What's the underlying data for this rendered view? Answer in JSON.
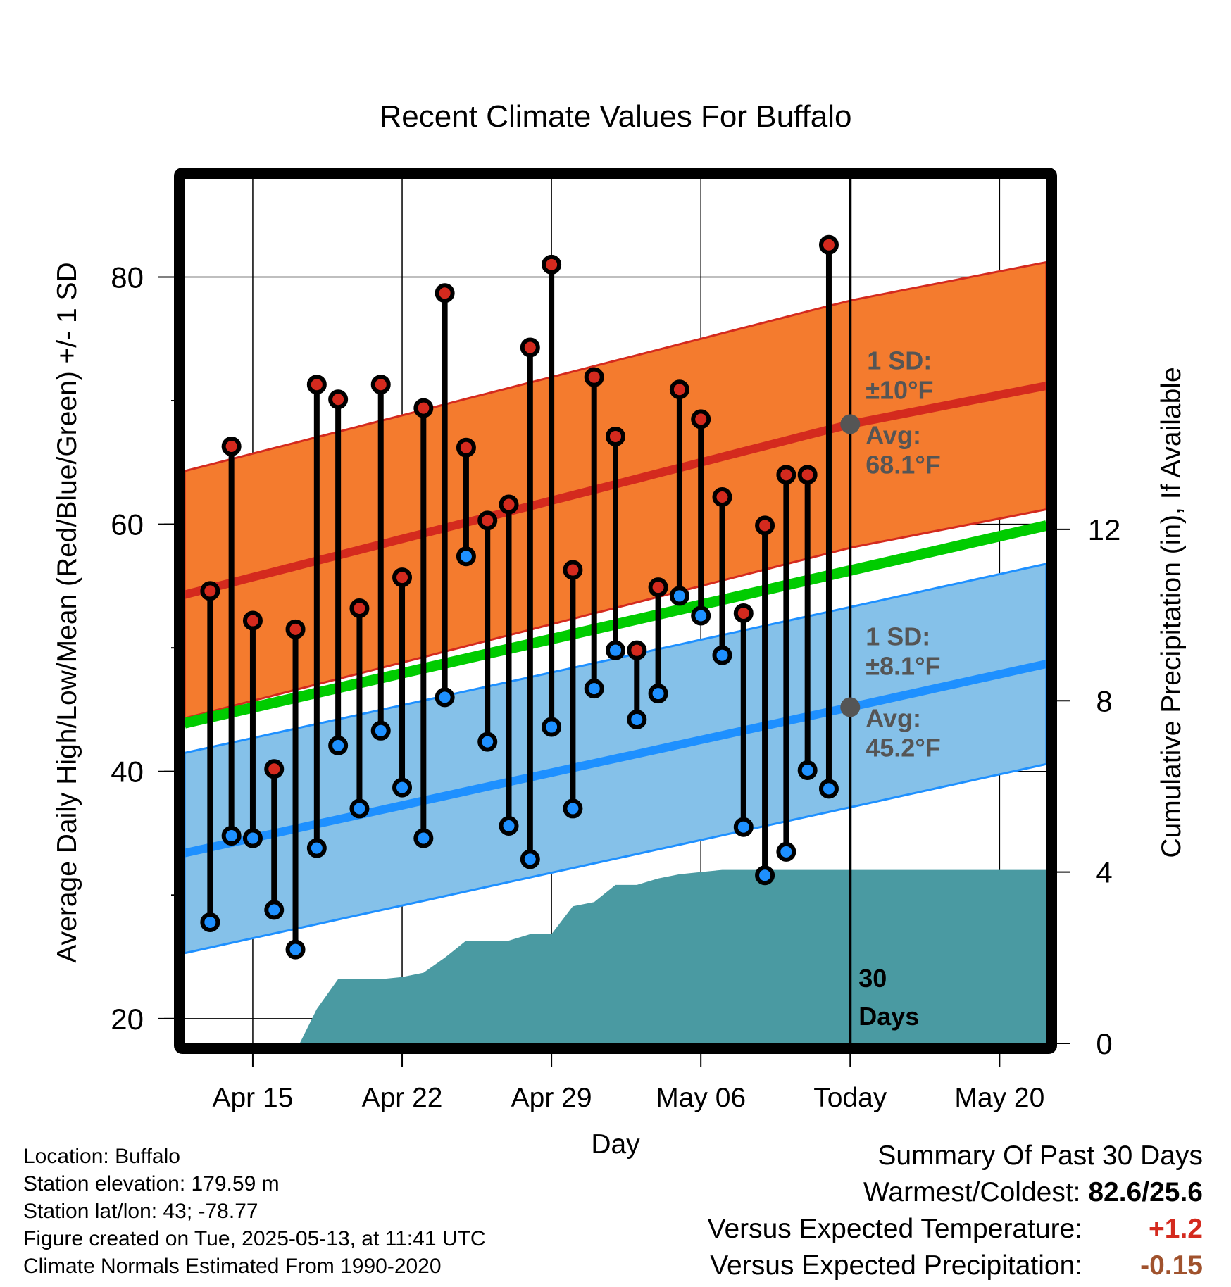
{
  "colors": {
    "high_band": "#f47b2e",
    "high_band_edge": "#d42a1e",
    "high_avg": "#d42a1e",
    "low_band": "#85c1e9",
    "low_band_edge": "#1e90ff",
    "low_avg": "#1e90ff",
    "mean_line": "#00cc00",
    "precip": "#4a9aa2",
    "high_marker": "#d42a1e",
    "low_marker": "#1e90ff",
    "annotation": "#555555",
    "warm_value": "#d42a1e",
    "precip_value": "#a0522d"
  },
  "chart_data": {
    "type": "line",
    "title": "Recent Climate Values For Buffalo",
    "xlabel": "Day",
    "ylabel": "Average Daily High/Low/Mean (Red/Blue/Green) +/- 1 SD",
    "y2label": "Cumulative Precipitation (in), If Available",
    "x_tick_labels": [
      "Apr 15",
      "Apr 22",
      "Apr 29",
      "May 06",
      "Today",
      "May 20"
    ],
    "x_tick_days": [
      15,
      22,
      29,
      36,
      43,
      50
    ],
    "y_ticks": [
      20,
      40,
      60,
      80
    ],
    "y2_ticks": [
      0,
      4,
      8,
      12
    ],
    "xlim": [
      11.8,
      52.2
    ],
    "ylim": [
      18,
      88
    ],
    "y2lim": [
      0,
      20.2
    ],
    "today_day": 43,
    "days": [
      13,
      14,
      15,
      16,
      17,
      18,
      19,
      20,
      21,
      22,
      23,
      24,
      25,
      26,
      27,
      28,
      29,
      30,
      31,
      32,
      33,
      34,
      35,
      36,
      37,
      38,
      39,
      40,
      41,
      42
    ],
    "highs": [
      54.6,
      66.3,
      52.2,
      40.2,
      51.5,
      71.3,
      70.1,
      53.2,
      71.3,
      55.7,
      69.4,
      78.7,
      66.2,
      60.3,
      61.6,
      74.3,
      81.0,
      56.3,
      71.9,
      67.1,
      49.8,
      54.9,
      70.9,
      68.5,
      62.2,
      52.8,
      59.9,
      64.0,
      64.0,
      82.6
    ],
    "lows": [
      27.8,
      34.8,
      34.6,
      28.8,
      25.6,
      33.8,
      42.1,
      37.0,
      43.3,
      38.7,
      34.6,
      46.0,
      57.4,
      42.4,
      35.6,
      32.9,
      43.6,
      37.0,
      46.7,
      49.8,
      44.2,
      46.3,
      54.2,
      52.6,
      49.4,
      35.5,
      31.6,
      33.5,
      40.1,
      38.6
    ],
    "normals": {
      "high_avg_start": 54.3,
      "high_avg_today": 68.1,
      "high_avg_end": 71.2,
      "high_sd": 10.0,
      "low_avg_start": 33.4,
      "low_avg_today": 45.2,
      "low_avg_end": 48.7,
      "low_sd": 8.1,
      "mean_start": 43.9,
      "mean_end": 59.9
    },
    "precip_cumulative": {
      "days": [
        17.2,
        18,
        19,
        20,
        21,
        22,
        23,
        24,
        25,
        26,
        27,
        28,
        29,
        30,
        31,
        32,
        33,
        34,
        35,
        36,
        37,
        38,
        39,
        40,
        41,
        42,
        43,
        52.2
      ],
      "values": [
        0,
        0.8,
        1.5,
        1.5,
        1.5,
        1.55,
        1.65,
        2.0,
        2.4,
        2.4,
        2.4,
        2.55,
        2.55,
        3.2,
        3.3,
        3.7,
        3.7,
        3.85,
        3.95,
        4.0,
        4.05,
        4.05,
        4.05,
        4.05,
        4.05,
        4.05,
        4.05,
        4.05
      ]
    },
    "annotations": {
      "high_sd_label": "1 SD:",
      "high_sd_value": "±10°F",
      "high_avg_label": "Avg:",
      "high_avg_value": "68.1°F",
      "low_sd_label": "1 SD:",
      "low_sd_value": "±8.1°F",
      "low_avg_label": "Avg:",
      "low_avg_value": "45.2°F",
      "days_label_1": "30",
      "days_label_2": "Days"
    }
  },
  "meta": {
    "location": "Location: Buffalo",
    "elevation": "Station elevation: 179.59 m",
    "latlon": "Station lat/lon: 43; -78.77",
    "created": "Figure created on Tue, 2025-05-13, at 11:41 UTC",
    "normals": "Climate Normals Estimated From 1990-2020"
  },
  "summary": {
    "title": "Summary Of Past 30 Days",
    "warmest_coldest_label": "Warmest/Coldest:",
    "warmest_coldest_value": "82.6/25.6",
    "temp_label": "Versus Expected Temperature:",
    "temp_value": "+1.2",
    "precip_label": "Versus Expected Precipitation:",
    "precip_value": "-0.15"
  }
}
